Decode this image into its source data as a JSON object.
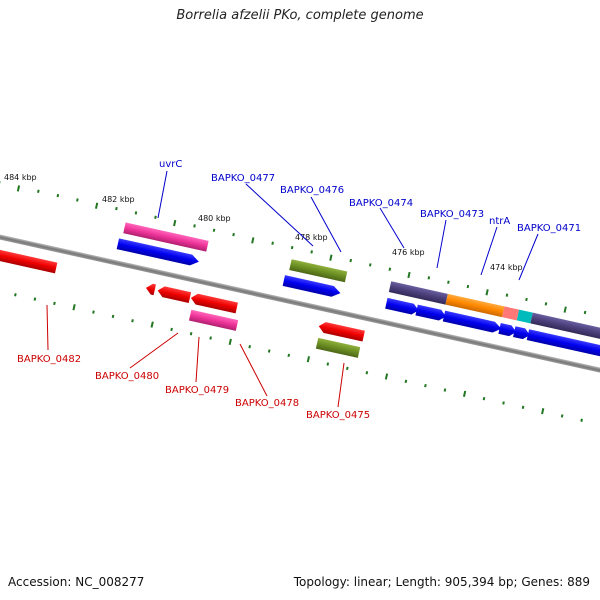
{
  "title": "Borrelia afzelii PKo, complete genome",
  "footer": {
    "accession": "Accession: NC_008277",
    "summary": "Topology: linear; Length: 905,394 bp; Genes: 889"
  },
  "ticks": [
    "484 kbp",
    "482 kbp",
    "480 kbp",
    "478 kbp",
    "476 kbp",
    "474 kbp"
  ],
  "genes_forward": [
    "uvrC",
    "BAPKO_0477",
    "BAPKO_0476",
    "BAPKO_0474",
    "BAPKO_0473",
    "ntrA",
    "BAPKO_0471"
  ],
  "genes_reverse": [
    "BAPKO_0482",
    "BAPKO_0480",
    "BAPKO_0479",
    "BAPKO_0478",
    "BAPKO_0475"
  ],
  "colors": {
    "forward_label": "#0000cc",
    "reverse_label": "#cc0000",
    "cds_blue": "#0000ee",
    "cds_red": "#ee0000",
    "pink": "#ee3399",
    "olive": "#6b8e23",
    "purple": "#4b3f7a",
    "orange": "#ff8800",
    "salmon": "#ff7777",
    "cyan": "#00bbbb",
    "backbone": "#888888",
    "tick": "#227722"
  }
}
